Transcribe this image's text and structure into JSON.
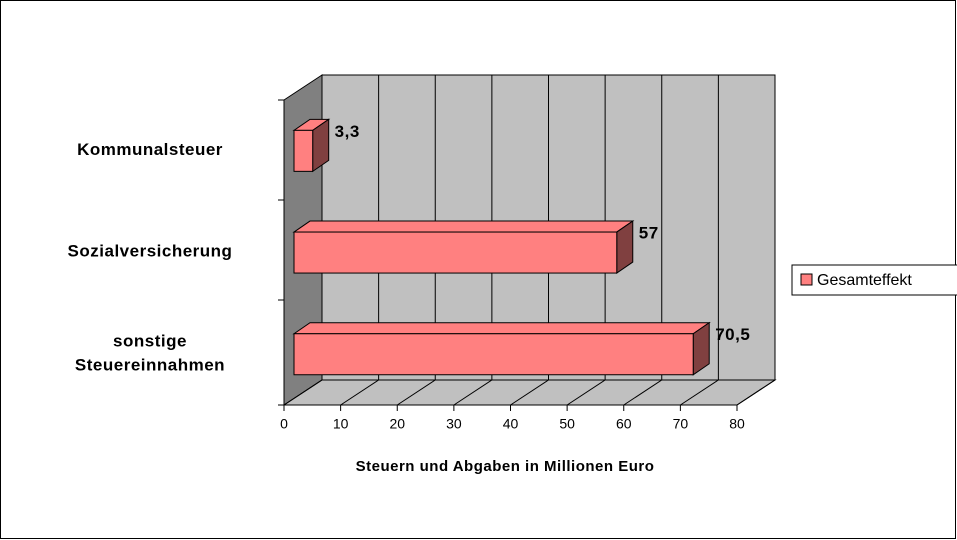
{
  "chart_data": {
    "type": "bar3d-horizontal",
    "categories": [
      "Kommunalsteuer",
      "Sozialversicherung",
      "sonstige Steuereinnahmen"
    ],
    "series": [
      {
        "name": "Gesamteffekt",
        "color": "#ff8080",
        "values": [
          3.3,
          57,
          70.5
        ],
        "value_labels": [
          "3,3",
          "57",
          "70,5"
        ]
      }
    ],
    "x_label": "Steuern und Abgaben in Millionen Euro",
    "xlim": [
      0,
      80
    ],
    "xticks": [
      0,
      10,
      20,
      30,
      40,
      50,
      60,
      70,
      80
    ],
    "grid": true,
    "legend": "right"
  }
}
